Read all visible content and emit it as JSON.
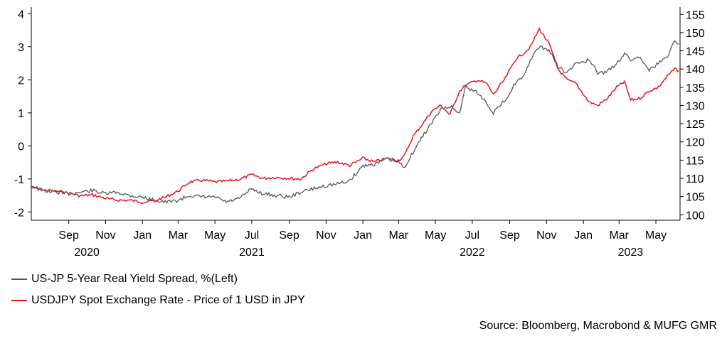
{
  "chart_data": {
    "type": "line",
    "title": "",
    "colors": {
      "spread": "#555555",
      "usdjpy": "#e8141c",
      "axis": "#000000"
    },
    "x_range": [
      "2020-07-01",
      "2023-06-10"
    ],
    "x_ticks": [
      {
        "date": "2020-09-01",
        "label": "Sep"
      },
      {
        "date": "2020-11-01",
        "label": "Nov"
      },
      {
        "date": "2021-01-01",
        "label": "Jan"
      },
      {
        "date": "2021-03-01",
        "label": "Mar"
      },
      {
        "date": "2021-05-01",
        "label": "May"
      },
      {
        "date": "2021-07-01",
        "label": "Jul"
      },
      {
        "date": "2021-09-01",
        "label": "Sep"
      },
      {
        "date": "2021-11-01",
        "label": "Nov"
      },
      {
        "date": "2022-01-01",
        "label": "Jan"
      },
      {
        "date": "2022-03-01",
        "label": "Mar"
      },
      {
        "date": "2022-05-01",
        "label": "May"
      },
      {
        "date": "2022-07-01",
        "label": "Jul"
      },
      {
        "date": "2022-09-01",
        "label": "Sep"
      },
      {
        "date": "2022-11-01",
        "label": "Nov"
      },
      {
        "date": "2023-01-01",
        "label": "Jan"
      },
      {
        "date": "2023-03-01",
        "label": "Mar"
      },
      {
        "date": "2023-05-01",
        "label": "May"
      }
    ],
    "year_labels": [
      {
        "date": "2020-10-01",
        "label": "2020"
      },
      {
        "date": "2021-07-01",
        "label": "2021"
      },
      {
        "date": "2022-07-01",
        "label": "2022"
      },
      {
        "date": "2023-03-20",
        "label": "2023"
      }
    ],
    "y_left": {
      "min": -2.25,
      "max": 4.2,
      "ticks": [
        4,
        3,
        2,
        1,
        0,
        -1,
        -2
      ]
    },
    "y_right": {
      "min": 98.5,
      "max": 157,
      "ticks": [
        155,
        150,
        145,
        140,
        135,
        130,
        125,
        120,
        115,
        110,
        105,
        100
      ]
    },
    "series": [
      {
        "name": "US-JP 5-Year Real Yield Spread, %(Left)",
        "axis": "left",
        "points": [
          [
            "2020-07-01",
            -1.2
          ],
          [
            "2020-07-20",
            -1.35
          ],
          [
            "2020-08-10",
            -1.4
          ],
          [
            "2020-09-01",
            -1.45
          ],
          [
            "2020-09-20",
            -1.4
          ],
          [
            "2020-10-10",
            -1.35
          ],
          [
            "2020-11-01",
            -1.45
          ],
          [
            "2020-11-20",
            -1.4
          ],
          [
            "2020-12-10",
            -1.5
          ],
          [
            "2021-01-01",
            -1.55
          ],
          [
            "2021-01-20",
            -1.65
          ],
          [
            "2021-02-10",
            -1.7
          ],
          [
            "2021-03-01",
            -1.65
          ],
          [
            "2021-03-20",
            -1.5
          ],
          [
            "2021-04-10",
            -1.55
          ],
          [
            "2021-05-01",
            -1.55
          ],
          [
            "2021-05-20",
            -1.7
          ],
          [
            "2021-06-10",
            -1.6
          ],
          [
            "2021-07-01",
            -1.3
          ],
          [
            "2021-07-20",
            -1.45
          ],
          [
            "2021-08-10",
            -1.5
          ],
          [
            "2021-09-01",
            -1.55
          ],
          [
            "2021-09-20",
            -1.4
          ],
          [
            "2021-10-10",
            -1.3
          ],
          [
            "2021-11-01",
            -1.2
          ],
          [
            "2021-11-20",
            -1.15
          ],
          [
            "2021-12-10",
            -1.05
          ],
          [
            "2022-01-01",
            -0.6
          ],
          [
            "2022-01-20",
            -0.55
          ],
          [
            "2022-02-10",
            -0.4
          ],
          [
            "2022-03-01",
            -0.5
          ],
          [
            "2022-03-10",
            -0.65
          ],
          [
            "2022-03-25",
            -0.2
          ],
          [
            "2022-04-10",
            0.3
          ],
          [
            "2022-04-25",
            0.7
          ],
          [
            "2022-05-10",
            1.1
          ],
          [
            "2022-05-25",
            1.2
          ],
          [
            "2022-06-10",
            1.0
          ],
          [
            "2022-06-20",
            1.8
          ],
          [
            "2022-07-10",
            1.6
          ],
          [
            "2022-07-25",
            1.3
          ],
          [
            "2022-08-05",
            1.0
          ],
          [
            "2022-08-25",
            1.4
          ],
          [
            "2022-09-10",
            1.9
          ],
          [
            "2022-09-25",
            2.1
          ],
          [
            "2022-10-05",
            2.6
          ],
          [
            "2022-10-20",
            3.0
          ],
          [
            "2022-11-05",
            2.9
          ],
          [
            "2022-11-20",
            2.4
          ],
          [
            "2022-12-05",
            2.2
          ],
          [
            "2022-12-20",
            2.5
          ],
          [
            "2023-01-10",
            2.6
          ],
          [
            "2023-01-25",
            2.2
          ],
          [
            "2023-02-10",
            2.25
          ],
          [
            "2023-02-25",
            2.5
          ],
          [
            "2023-03-10",
            2.8
          ],
          [
            "2023-03-20",
            2.6
          ],
          [
            "2023-04-05",
            2.7
          ],
          [
            "2023-04-20",
            2.3
          ],
          [
            "2023-05-05",
            2.5
          ],
          [
            "2023-05-20",
            2.7
          ],
          [
            "2023-06-01",
            3.2
          ],
          [
            "2023-06-08",
            3.1
          ]
        ]
      },
      {
        "name": "USDJPY Spot Exchange Rate - Price of 1 USD in JPY",
        "axis": "right",
        "points": [
          [
            "2020-07-01",
            107.5
          ],
          [
            "2020-07-20",
            106.8
          ],
          [
            "2020-08-10",
            106.5
          ],
          [
            "2020-09-01",
            106
          ],
          [
            "2020-09-20",
            105.2
          ],
          [
            "2020-10-10",
            105.5
          ],
          [
            "2020-11-01",
            104.5
          ],
          [
            "2020-11-20",
            104
          ],
          [
            "2020-12-10",
            104
          ],
          [
            "2021-01-01",
            103.5
          ],
          [
            "2021-01-20",
            103.8
          ],
          [
            "2021-02-10",
            105
          ],
          [
            "2021-03-01",
            106.5
          ],
          [
            "2021-03-20",
            109
          ],
          [
            "2021-04-10",
            109.5
          ],
          [
            "2021-05-01",
            109
          ],
          [
            "2021-05-20",
            109.2
          ],
          [
            "2021-06-10",
            109.7
          ],
          [
            "2021-07-01",
            111
          ],
          [
            "2021-07-20",
            110
          ],
          [
            "2021-08-10",
            110.3
          ],
          [
            "2021-09-01",
            110
          ],
          [
            "2021-09-20",
            109.8
          ],
          [
            "2021-10-10",
            112.5
          ],
          [
            "2021-11-01",
            114
          ],
          [
            "2021-11-20",
            114.5
          ],
          [
            "2021-12-10",
            113.5
          ],
          [
            "2022-01-01",
            115.5
          ],
          [
            "2022-01-20",
            114.5
          ],
          [
            "2022-02-10",
            115.5
          ],
          [
            "2022-03-01",
            115
          ],
          [
            "2022-03-10",
            116
          ],
          [
            "2022-03-25",
            121.5
          ],
          [
            "2022-04-10",
            125
          ],
          [
            "2022-04-25",
            128.5
          ],
          [
            "2022-05-10",
            130
          ],
          [
            "2022-05-25",
            127.5
          ],
          [
            "2022-06-10",
            134
          ],
          [
            "2022-06-20",
            135.5
          ],
          [
            "2022-07-10",
            137
          ],
          [
            "2022-07-25",
            136
          ],
          [
            "2022-08-05",
            133
          ],
          [
            "2022-08-25",
            137.5
          ],
          [
            "2022-09-10",
            142.5
          ],
          [
            "2022-09-25",
            144.5
          ],
          [
            "2022-10-05",
            146
          ],
          [
            "2022-10-20",
            151
          ],
          [
            "2022-11-05",
            147
          ],
          [
            "2022-11-20",
            140
          ],
          [
            "2022-12-05",
            137
          ],
          [
            "2022-12-20",
            136
          ],
          [
            "2023-01-10",
            131
          ],
          [
            "2023-01-25",
            130
          ],
          [
            "2023-02-10",
            132
          ],
          [
            "2023-02-25",
            135
          ],
          [
            "2023-03-10",
            136.5
          ],
          [
            "2023-03-20",
            131.5
          ],
          [
            "2023-04-05",
            132
          ],
          [
            "2023-04-20",
            134
          ],
          [
            "2023-05-05",
            135
          ],
          [
            "2023-05-20",
            138
          ],
          [
            "2023-06-01",
            140
          ],
          [
            "2023-06-08",
            139.5
          ]
        ]
      }
    ]
  },
  "legend": {
    "series1": "US-JP 5-Year Real Yield Spread, %(Left)",
    "series2": "USDJPY Spot Exchange Rate - Price of 1 USD in JPY"
  },
  "source": "Source: Bloomberg, Macrobond & MUFG GMR"
}
